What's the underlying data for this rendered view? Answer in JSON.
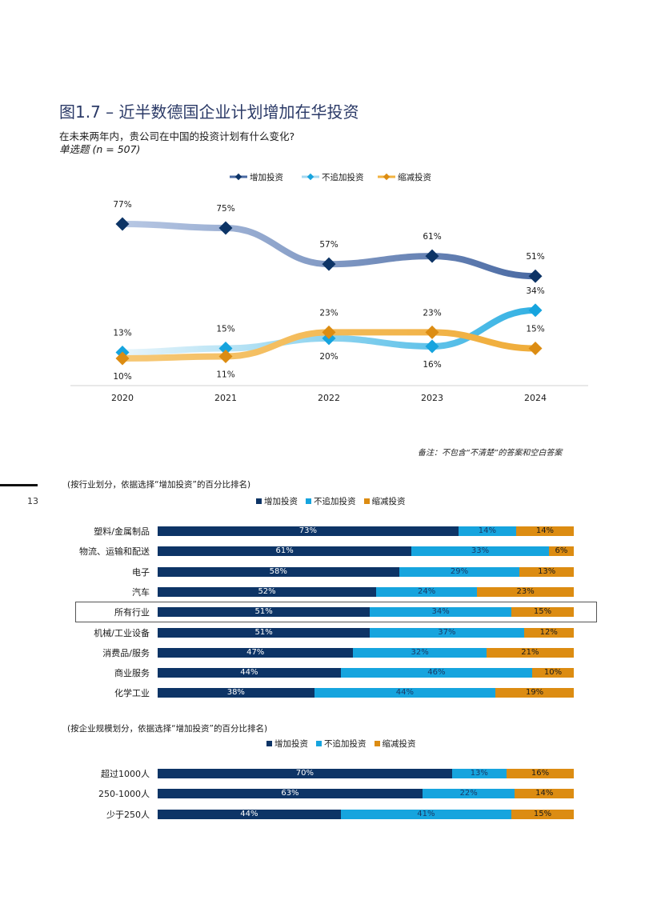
{
  "header": {
    "title": "图1.7 – 近半数德国企业计划增加在华投资",
    "subtitle": "在未来两年内，贵公司在中国的投资计划有什么变化?",
    "note": "单选题 (n = 507)"
  },
  "page": {
    "number": "13",
    "remark": "备注：不包含“不清楚”的答案和空白答案"
  },
  "colors": {
    "dark": "#0d3466",
    "light": "#16a4de",
    "orange": "#dc8c12",
    "dark_line": "#4a6aa3",
    "light_line": "#a6d8f0",
    "orange_line": "#f2b340"
  },
  "chart_data": [
    {
      "type": "line",
      "x": [
        "2020",
        "2021",
        "2022",
        "2023",
        "2024"
      ],
      "series": [
        {
          "name": "增加投资",
          "values": [
            77,
            75,
            57,
            61,
            51
          ],
          "labels": [
            "77%",
            "75%",
            "57%",
            "61%",
            "51%"
          ]
        },
        {
          "name": "不追加投资",
          "values": [
            13,
            15,
            20,
            16,
            34
          ],
          "labels": [
            "13%",
            "15%",
            "20%",
            "16%",
            "34%"
          ]
        },
        {
          "name": "缩减投资",
          "values": [
            10,
            11,
            23,
            23,
            15
          ],
          "labels": [
            "10%",
            "11%",
            "23%",
            "23%",
            "15%"
          ]
        }
      ]
    },
    {
      "type": "bar",
      "stacked": true,
      "orientation": "horizontal",
      "caption": "(按行业划分，依据选择“增加投资”的百分比排名)",
      "legend": [
        "增加投资",
        "不追加投资",
        "缩减投资"
      ],
      "categories": [
        "塑料/金属制品",
        "物流、运输和配送",
        "电子",
        "汽车",
        "所有行业",
        "机械/工业设备",
        "消费品/服务",
        "商业服务",
        "化学工业"
      ],
      "highlight": "所有行业",
      "series": [
        {
          "name": "增加投资",
          "values": [
            73,
            61,
            58,
            52,
            51,
            51,
            47,
            44,
            38
          ],
          "labels": [
            "73%",
            "61%",
            "58%",
            "52%",
            "51%",
            "51%",
            "47%",
            "44%",
            "38%"
          ]
        },
        {
          "name": "不追加投资",
          "values": [
            14,
            33,
            29,
            24,
            34,
            37,
            32,
            46,
            44
          ],
          "labels": [
            "14%",
            "33%",
            "29%",
            "24%",
            "34%",
            "37%",
            "32%",
            "46%",
            "44%"
          ]
        },
        {
          "name": "缩减投资",
          "values": [
            14,
            6,
            13,
            23,
            15,
            12,
            21,
            10,
            19
          ],
          "labels": [
            "14%",
            "6%",
            "13%",
            "23%",
            "15%",
            "12%",
            "21%",
            "10%",
            "19%"
          ]
        }
      ]
    },
    {
      "type": "bar",
      "stacked": true,
      "orientation": "horizontal",
      "caption": "(按企业规模划分，依据选择“增加投资”的百分比排名)",
      "legend": [
        "增加投资",
        "不追加投资",
        "缩减投资"
      ],
      "categories": [
        "超过1000人",
        "250-1000人",
        "少于250人"
      ],
      "series": [
        {
          "name": "增加投资",
          "values": [
            70,
            63,
            44
          ],
          "labels": [
            "70%",
            "63%",
            "44%"
          ]
        },
        {
          "name": "不追加投资",
          "values": [
            13,
            22,
            41
          ],
          "labels": [
            "13%",
            "22%",
            "41%"
          ]
        },
        {
          "name": "缩减投资",
          "values": [
            16,
            14,
            15
          ],
          "labels": [
            "16%",
            "14%",
            "15%"
          ]
        }
      ]
    }
  ]
}
